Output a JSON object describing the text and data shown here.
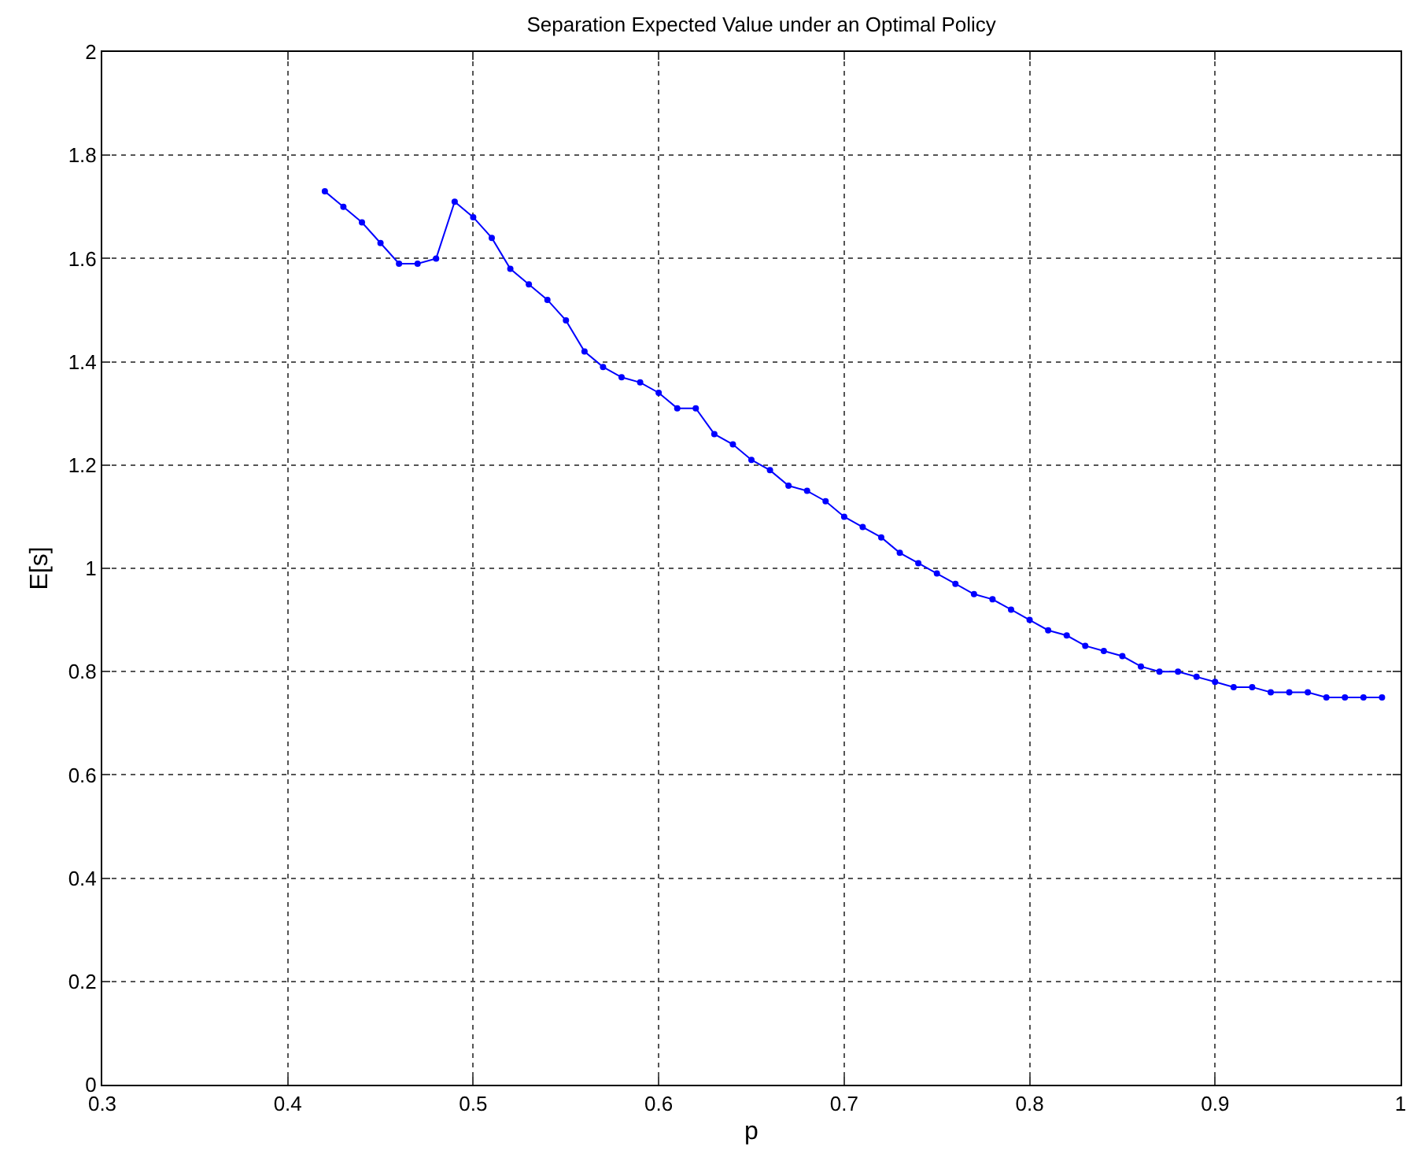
{
  "chart_data": {
    "type": "line",
    "title": "Separation Expected Value under an Optimal Policy",
    "xlabel": "p",
    "ylabel": "E[s]",
    "x": [
      0.42,
      0.43,
      0.44,
      0.45,
      0.46,
      0.47,
      0.48,
      0.49,
      0.5,
      0.51,
      0.52,
      0.53,
      0.54,
      0.55,
      0.56,
      0.57,
      0.58,
      0.59,
      0.6,
      0.61,
      0.62,
      0.63,
      0.64,
      0.65,
      0.66,
      0.67,
      0.68,
      0.69,
      0.7,
      0.71,
      0.72,
      0.73,
      0.74,
      0.75,
      0.76,
      0.77,
      0.78,
      0.79,
      0.8,
      0.81,
      0.82,
      0.83,
      0.84,
      0.85,
      0.86,
      0.87,
      0.88,
      0.89,
      0.9,
      0.91,
      0.92,
      0.93,
      0.94,
      0.95,
      0.96,
      0.97,
      0.98,
      0.99
    ],
    "series": [
      {
        "color": "#0000ff",
        "values": [
          1.73,
          1.7,
          1.67,
          1.63,
          1.59,
          1.59,
          1.6,
          1.71,
          1.68,
          1.64,
          1.58,
          1.55,
          1.52,
          1.48,
          1.42,
          1.39,
          1.37,
          1.36,
          1.34,
          1.31,
          1.31,
          1.26,
          1.24,
          1.21,
          1.19,
          1.16,
          1.15,
          1.13,
          1.1,
          1.08,
          1.06,
          1.03,
          1.01,
          0.99,
          0.97,
          0.95,
          0.94,
          0.92,
          0.9,
          0.88,
          0.87,
          0.85,
          0.84,
          0.83,
          0.81,
          0.8,
          0.8,
          0.79,
          0.78,
          0.77,
          0.77,
          0.76,
          0.76,
          0.76,
          0.75,
          0.75,
          0.75,
          0.75
        ]
      }
    ],
    "xlim": [
      0.3,
      1
    ],
    "xticks": [
      0.3,
      0.4,
      0.5,
      0.6,
      0.7,
      0.8,
      0.9,
      1
    ],
    "ylim": [
      0,
      2
    ],
    "yticks": [
      0,
      0.2,
      0.4,
      0.6,
      0.8,
      1,
      1.2,
      1.4,
      1.6,
      1.8,
      2
    ],
    "grid": true,
    "marker": "circle",
    "line_style": "solid"
  }
}
